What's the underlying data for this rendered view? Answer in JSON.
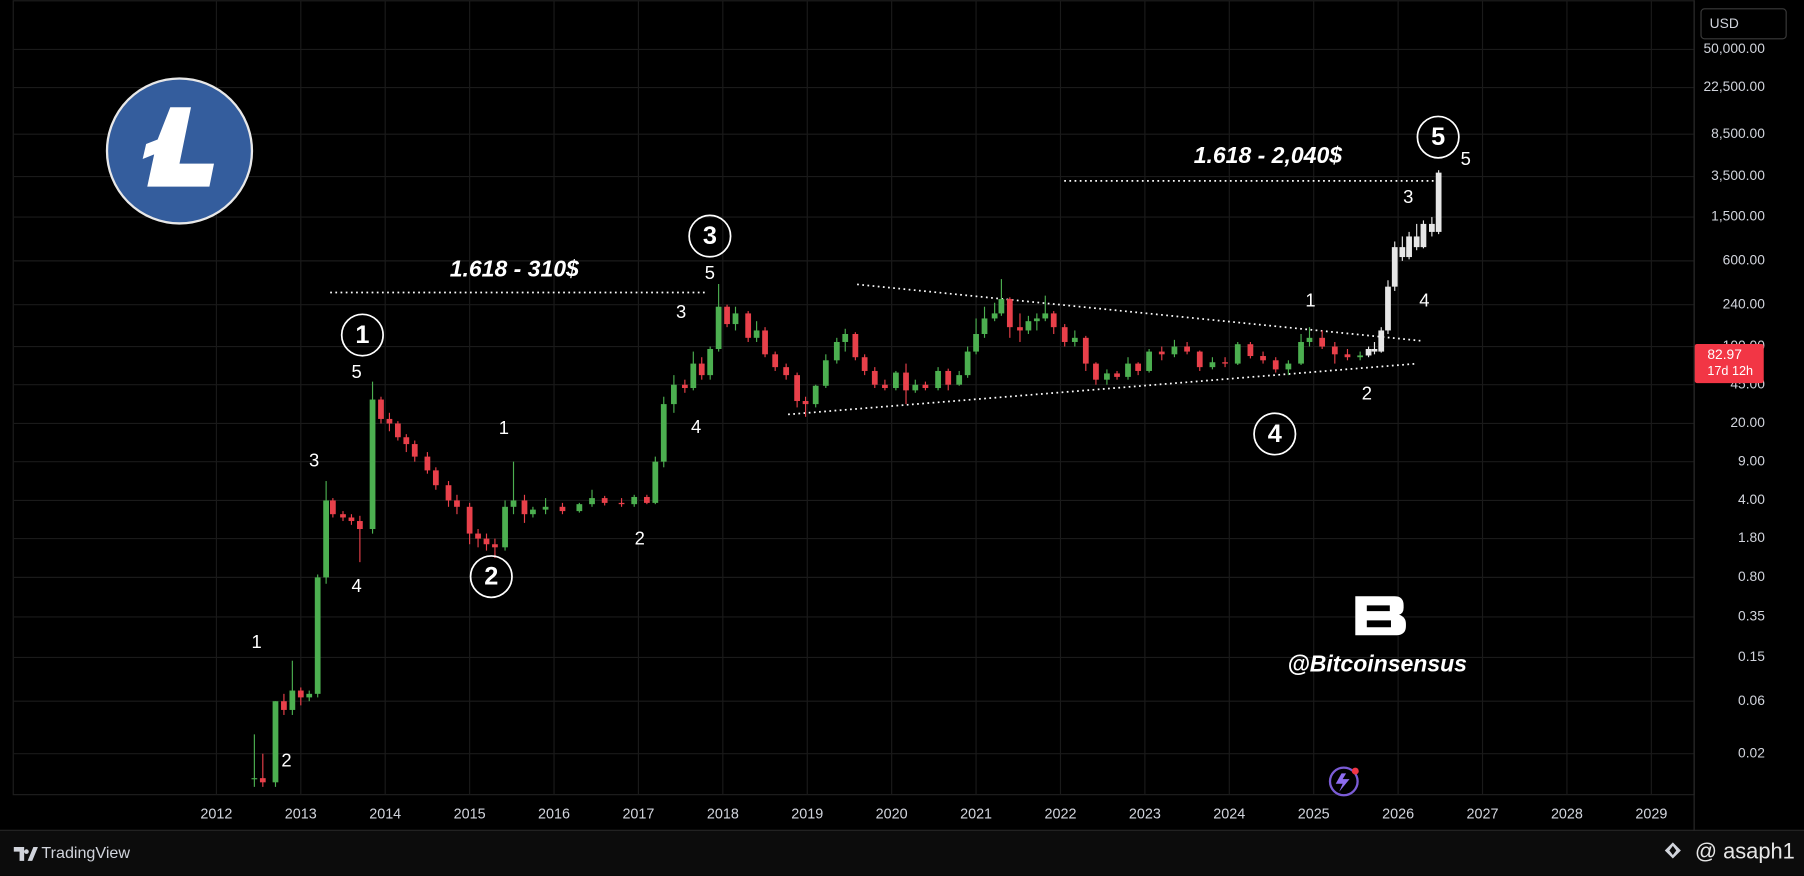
{
  "chart_data": {
    "type": "candlestick",
    "log_scale": true,
    "grid": true,
    "up_color": "#4caf50",
    "down_color": "#e8404a",
    "xlim": [
      2009.6,
      2029.5
    ],
    "xticks": [
      2012,
      2013,
      2014,
      2015,
      2016,
      2017,
      2018,
      2019,
      2020,
      2021,
      2022,
      2023,
      2024,
      2025,
      2026,
      2027,
      2028,
      2029
    ],
    "ylim": [
      0.0086,
      110000
    ],
    "yticks": [
      0.02,
      0.06,
      0.15,
      0.35,
      {
        "value": 0.8,
        "label": "0.80"
      },
      {
        "value": 1.8,
        "label": "1.80"
      },
      {
        "value": 4,
        "label": "4.00"
      },
      {
        "value": 9,
        "label": "9.00"
      },
      {
        "value": 20,
        "label": "20.00"
      },
      {
        "value": 45,
        "label": "45.00"
      },
      {
        "value": 100,
        "label": "100.00"
      },
      {
        "value": 240,
        "label": "240.00"
      },
      {
        "value": 600,
        "label": "600.00"
      },
      {
        "value": 1500,
        "label": "1,500.00"
      },
      {
        "value": 3500,
        "label": "3,500.00"
      },
      {
        "value": 8500,
        "label": "8,500.00"
      },
      {
        "value": 22500,
        "label": "22,500.00"
      },
      {
        "value": 50000,
        "label": "50,000.00"
      }
    ],
    "x": [
      2012.45,
      2012.55,
      2012.7,
      2012.8,
      2012.9,
      2013.0,
      2013.1,
      2013.2,
      2013.3,
      2013.38,
      2013.5,
      2013.6,
      2013.7,
      2013.85,
      2013.95,
      2014.05,
      2014.15,
      2014.25,
      2014.35,
      2014.5,
      2014.6,
      2014.75,
      2014.85,
      2015.0,
      2015.1,
      2015.2,
      2015.3,
      2015.42,
      2015.52,
      2015.65,
      2015.75,
      2015.9,
      2016.1,
      2016.3,
      2016.45,
      2016.6,
      2016.8,
      2016.95,
      2017.1,
      2017.2,
      2017.3,
      2017.42,
      2017.55,
      2017.65,
      2017.75,
      2017.85,
      2017.95,
      2018.05,
      2018.15,
      2018.3,
      2018.4,
      2018.5,
      2018.62,
      2018.75,
      2018.88,
      2018.98,
      2019.1,
      2019.22,
      2019.35,
      2019.45,
      2019.57,
      2019.68,
      2019.8,
      2019.92,
      2020.05,
      2020.17,
      2020.28,
      2020.4,
      2020.55,
      2020.67,
      2020.8,
      2020.9,
      2021.0,
      2021.1,
      2021.22,
      2021.3,
      2021.4,
      2021.52,
      2021.62,
      2021.72,
      2021.82,
      2021.92,
      2022.05,
      2022.17,
      2022.3,
      2022.42,
      2022.55,
      2022.67,
      2022.8,
      2022.92,
      2023.05,
      2023.2,
      2023.35,
      2023.5,
      2023.65,
      2023.8,
      2023.95,
      2024.1,
      2024.25,
      2024.4,
      2024.55,
      2024.7,
      2024.85,
      2024.95,
      2025.1,
      2025.25,
      2025.4,
      2025.55
    ],
    "open": [
      0.012,
      0.012,
      0.011,
      0.06,
      0.05,
      0.075,
      0.065,
      0.07,
      0.8,
      4,
      3,
      2.8,
      2.6,
      2.2,
      33,
      22,
      20,
      15,
      13,
      10,
      7.5,
      5.5,
      4,
      3.5,
      2,
      1.8,
      1.6,
      1.5,
      3.5,
      4,
      3,
      3.3,
      3.5,
      3.2,
      3.7,
      4.2,
      3.8,
      3.7,
      4.3,
      3.8,
      9,
      30,
      45,
      42,
      70,
      55,
      95,
      230,
      160,
      200,
      120,
      140,
      85,
      65,
      55,
      32,
      30,
      44,
      75,
      110,
      130,
      80,
      60,
      45,
      42,
      58,
      40,
      45,
      42,
      60,
      45,
      55,
      90,
      130,
      180,
      200,
      270,
      150,
      140,
      170,
      180,
      200,
      150,
      110,
      120,
      70,
      50,
      57,
      53,
      70,
      60,
      90,
      85,
      100,
      90,
      65,
      72,
      70,
      105,
      82,
      75,
      62,
      70,
      110,
      120,
      100,
      85,
      80
    ],
    "high": [
      0.03,
      0.02,
      0.06,
      0.07,
      0.14,
      0.08,
      0.075,
      0.85,
      6,
      4.2,
      3.2,
      3,
      2.9,
      48,
      35,
      25,
      21,
      16,
      14,
      11,
      8,
      6,
      4.5,
      3.8,
      2.2,
      2,
      1.8,
      4,
      9,
      4.5,
      3.5,
      4.2,
      3.8,
      3.8,
      5,
      4.4,
      4.2,
      4.5,
      4.5,
      10,
      35,
      55,
      50,
      90,
      80,
      100,
      370,
      240,
      230,
      210,
      170,
      150,
      90,
      70,
      58,
      35,
      45,
      85,
      120,
      145,
      135,
      85,
      65,
      50,
      60,
      70,
      50,
      48,
      65,
      63,
      60,
      100,
      180,
      230,
      250,
      410,
      280,
      200,
      190,
      200,
      290,
      210,
      160,
      140,
      125,
      72,
      62,
      60,
      80,
      72,
      95,
      100,
      115,
      110,
      92,
      80,
      80,
      110,
      110,
      90,
      80,
      75,
      130,
      150,
      140,
      110,
      95,
      90
    ],
    "low": [
      0.01,
      0.01,
      0.01,
      0.045,
      0.045,
      0.055,
      0.06,
      0.065,
      0.7,
      2.8,
      2.6,
      2.4,
      1.1,
      2,
      20,
      17,
      14,
      11,
      9,
      7,
      5,
      3.5,
      3,
      1.6,
      1.5,
      1.4,
      1.2,
      1.4,
      3,
      2.5,
      2.8,
      3,
      3,
      3.1,
      3.5,
      3.6,
      3.5,
      3.5,
      3.7,
      3.7,
      8,
      25,
      38,
      40,
      50,
      50,
      90,
      150,
      140,
      110,
      110,
      80,
      60,
      50,
      28,
      23,
      28,
      42,
      70,
      90,
      75,
      55,
      42,
      40,
      40,
      30,
      38,
      40,
      40,
      40,
      44,
      52,
      85,
      120,
      170,
      190,
      120,
      110,
      130,
      140,
      170,
      130,
      100,
      100,
      60,
      45,
      45,
      50,
      50,
      55,
      58,
      75,
      80,
      85,
      60,
      62,
      65,
      68,
      78,
      70,
      58,
      55,
      68,
      100,
      95,
      70,
      75,
      75
    ],
    "close": [
      0.012,
      0.011,
      0.06,
      0.05,
      0.075,
      0.065,
      0.07,
      0.8,
      4,
      3,
      2.8,
      2.6,
      2.2,
      33,
      22,
      20,
      15,
      13,
      10,
      7.5,
      5.5,
      4,
      3.5,
      2,
      1.8,
      1.6,
      1.5,
      3.5,
      4,
      3,
      3.3,
      3.5,
      3.2,
      3.7,
      4.2,
      3.8,
      3.7,
      4.3,
      3.8,
      9,
      30,
      45,
      42,
      70,
      55,
      95,
      230,
      160,
      200,
      120,
      140,
      85,
      65,
      55,
      32,
      30,
      44,
      75,
      110,
      130,
      80,
      60,
      45,
      42,
      58,
      40,
      45,
      42,
      60,
      45,
      55,
      90,
      130,
      180,
      200,
      270,
      150,
      140,
      170,
      180,
      200,
      150,
      110,
      120,
      70,
      50,
      57,
      53,
      70,
      60,
      90,
      85,
      100,
      90,
      65,
      72,
      70,
      105,
      82,
      75,
      62,
      70,
      110,
      120,
      100,
      85,
      80,
      82.97
    ],
    "projection": {
      "color": "#e6e6e6",
      "x": [
        2025.65,
        2025.72,
        2025.8,
        2025.88,
        2025.96,
        2026.05,
        2026.13,
        2026.22,
        2026.3,
        2026.4,
        2026.48
      ],
      "open": [
        82.97,
        95,
        90,
        140,
        350,
        800,
        650,
        1000,
        800,
        1300,
        1100
      ],
      "high": [
        100,
        110,
        150,
        400,
        900,
        1000,
        1100,
        1300,
        1400,
        1500,
        4000
      ],
      "low": [
        80,
        85,
        88,
        130,
        320,
        600,
        620,
        750,
        780,
        1000,
        1050
      ],
      "close": [
        95,
        90,
        140,
        350,
        800,
        650,
        1000,
        800,
        1300,
        1100,
        3800
      ]
    },
    "countdown": "17d 12h",
    "fib_labels": [
      "1.618 - 310$",
      "1.618 - 2,040$"
    ],
    "wave_circles": [
      "1",
      "2",
      "3",
      "4",
      "5"
    ],
    "wave_labels": [
      "5",
      "3",
      "4",
      "1",
      "2",
      "1",
      "2",
      "3",
      "5",
      "4",
      "1",
      "2",
      "3",
      "4",
      "5"
    ],
    "watermark": "@Bitcoinsensus"
  },
  "ui": {
    "currency": "USD",
    "brand": "TradingView",
    "user": "@ asaph1"
  }
}
